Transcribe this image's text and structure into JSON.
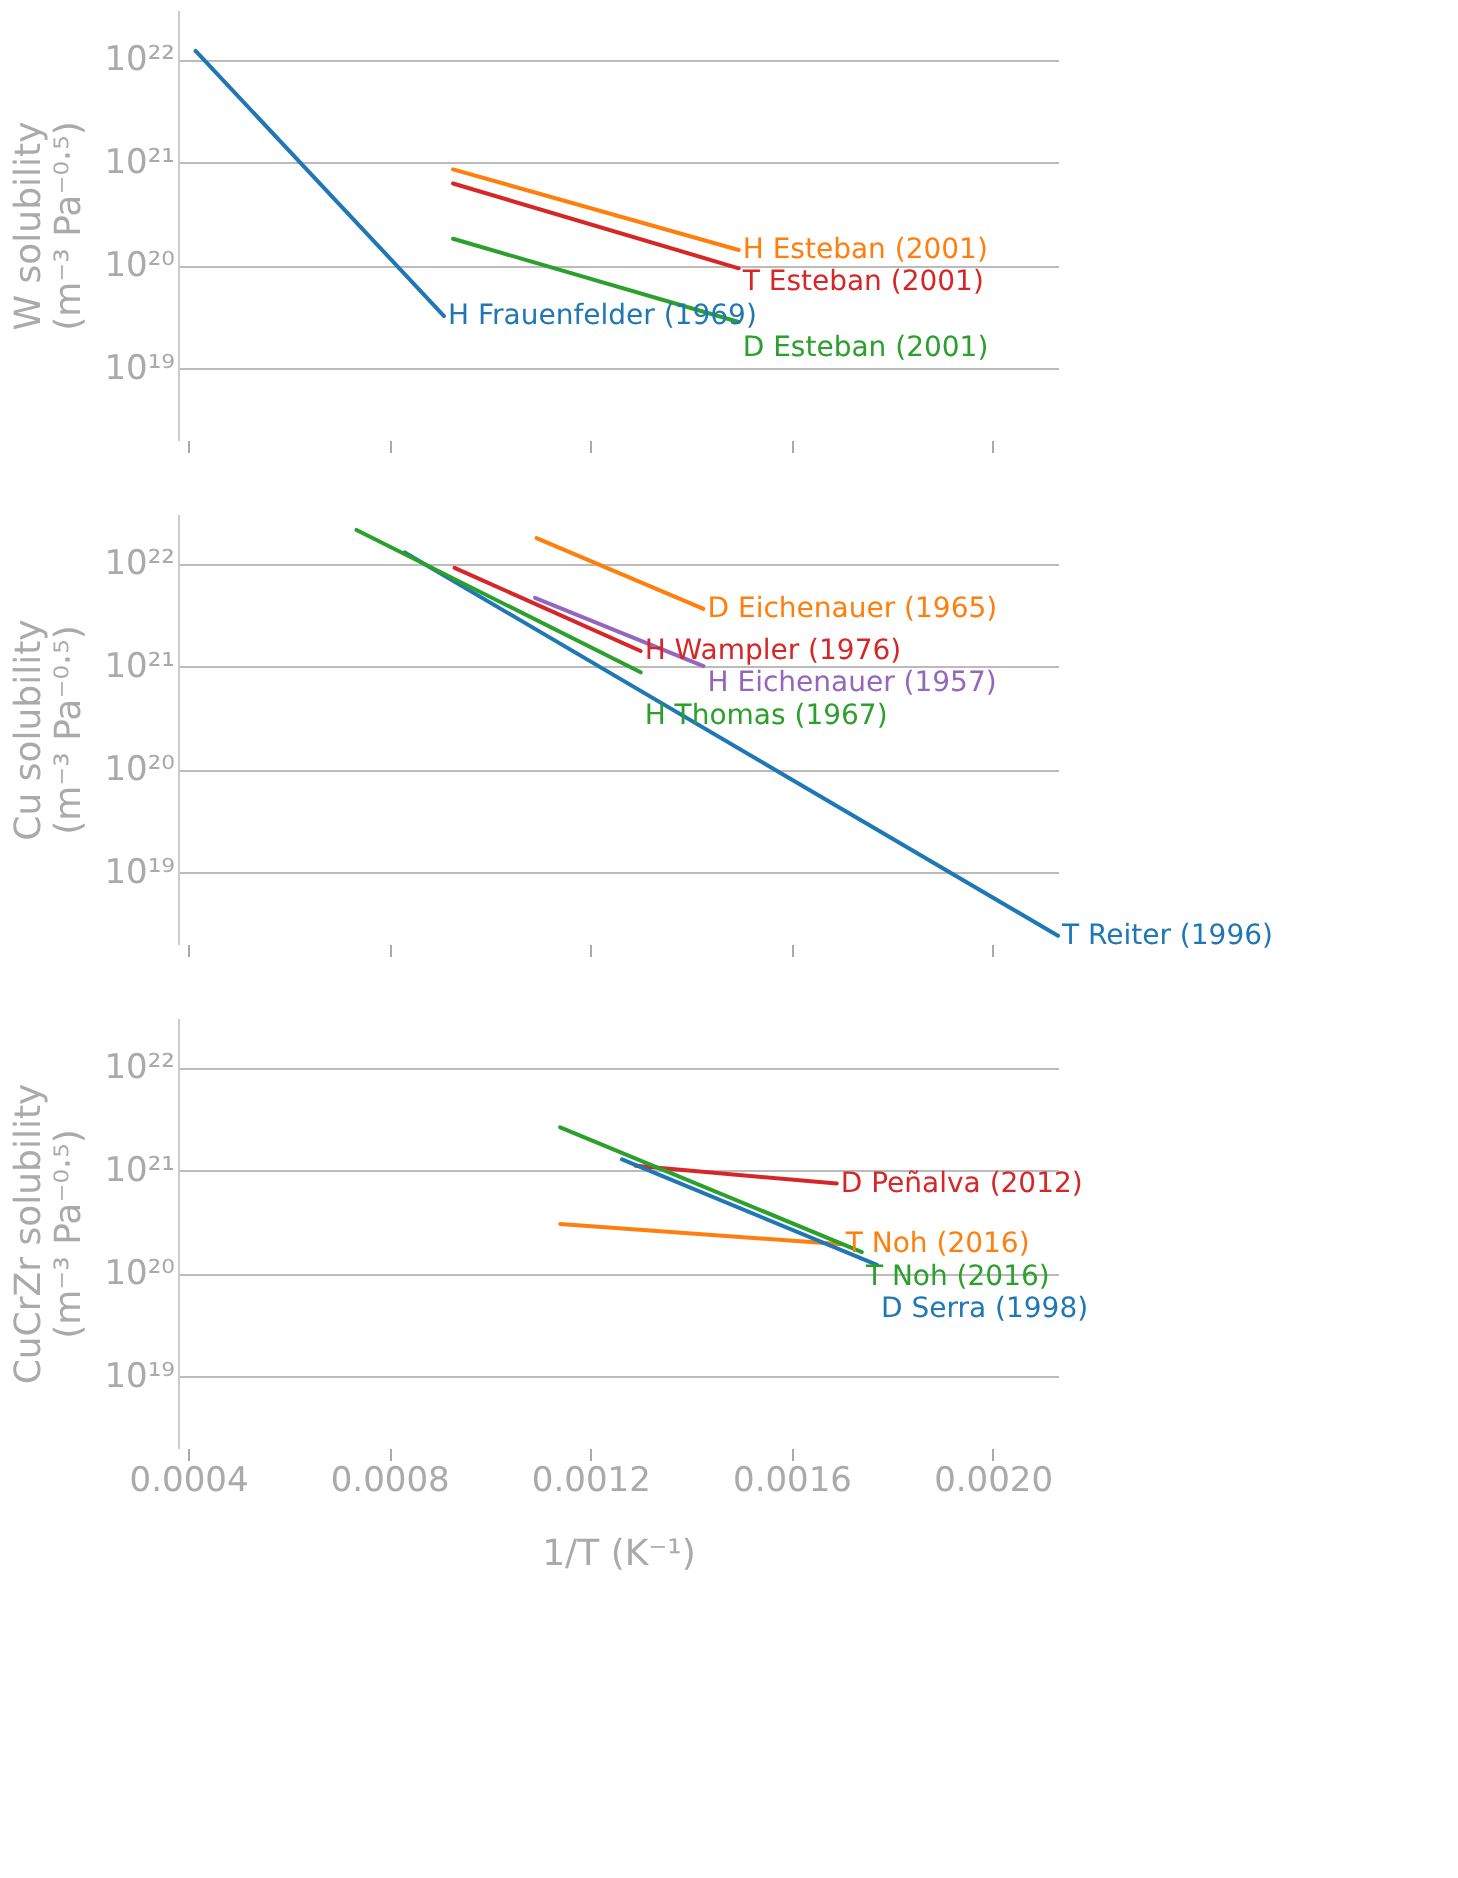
{
  "chart_data": [
    {
      "type": "line",
      "ylabel": "W solubility\n(m⁻³ Pa⁻⁰·⁵)",
      "log": "y",
      "grid": "y",
      "tick_labels": "y",
      "line_style": "solid",
      "xlim": [
        0.00038,
        0.00213
      ],
      "xticks": [
        {
          "value": 0.0004,
          "label": null
        },
        {
          "value": 0.0008,
          "label": null
        },
        {
          "value": 0.0012,
          "label": null
        },
        {
          "value": 0.0016,
          "label": null
        },
        {
          "value": 0.002,
          "label": null
        }
      ],
      "ylim": [
        2e+18,
        3e+22
      ],
      "yticks": [
        {
          "value": 1e+19,
          "label": "10¹⁹"
        },
        {
          "value": 1e+20,
          "label": "10²⁰"
        },
        {
          "value": 1e+21,
          "label": "10²¹"
        },
        {
          "value": 1e+22,
          "label": "10²²"
        }
      ],
      "series": [
        {
          "name": "H Frauenfelder (1969)",
          "color": "#1f77b4",
          "x": [
            0.000415,
            0.000909
          ],
          "values": [
            1.2e+22,
            3.2e+19
          ]
        },
        {
          "name": "H Esteban (2001)",
          "color": "#ff7f0e",
          "x": [
            0.000927,
            0.001495
          ],
          "values": [
            8.5e+20,
            1.4e+20
          ]
        },
        {
          "name": "T Esteban (2001)",
          "color": "#d62728",
          "x": [
            0.000927,
            0.001495
          ],
          "values": [
            6.2e+20,
            9.3e+19
          ]
        },
        {
          "name": "D Esteban (2001)",
          "color": "#2ca02c",
          "x": [
            0.000927,
            0.001495
          ],
          "values": [
            1.8e+20,
            2.8e+19
          ]
        }
      ]
    },
    {
      "type": "line",
      "ylabel": "Cu solubility\n(m⁻³ Pa⁻⁰·⁵)",
      "log": "y",
      "grid": "y",
      "tick_labels": "y",
      "line_style": "solid",
      "xlim": [
        0.00038,
        0.00213
      ],
      "xticks": [
        {
          "value": 0.0004,
          "label": null
        },
        {
          "value": 0.0008,
          "label": null
        },
        {
          "value": 0.0012,
          "label": null
        },
        {
          "value": 0.0016,
          "label": null
        },
        {
          "value": 0.002,
          "label": null
        }
      ],
      "ylim": [
        2e+18,
        3e+22
      ],
      "yticks": [
        {
          "value": 1e+19,
          "label": "10¹⁹"
        },
        {
          "value": 1e+20,
          "label": "10²⁰"
        },
        {
          "value": 1e+21,
          "label": "10²¹"
        },
        {
          "value": 1e+22,
          "label": "10²²"
        }
      ],
      "series": [
        {
          "name": "T Reiter (1996)",
          "color": "#1f77b4",
          "x": [
            0.000831,
            0.00213
          ],
          "values": [
            1.27e+22,
            2.4e+18
          ]
        },
        {
          "name": "D Eichenauer (1965)",
          "color": "#ff7f0e",
          "x": [
            0.001093,
            0.001425
          ],
          "values": [
            1.75e+22,
            3.6e+21
          ]
        },
        {
          "name": "H Wampler (1976)",
          "color": "#d62728",
          "x": [
            0.00093,
            0.0013
          ],
          "values": [
            9e+21,
            1.4e+21
          ]
        },
        {
          "name": "H Thomas (1967)",
          "color": "#2ca02c",
          "x": [
            0.000735,
            0.0013
          ],
          "values": [
            2.1e+22,
            8.7e+20
          ]
        },
        {
          "name": "H Eichenauer (1957)",
          "color": "#9467bd",
          "x": [
            0.00109,
            0.001425
          ],
          "values": [
            4.6e+21,
            1e+21
          ]
        }
      ]
    },
    {
      "type": "line",
      "ylabel": "CuCrZr solubility\n(m⁻³ Pa⁻⁰·⁵)",
      "xlabel": "1/T (K⁻¹)",
      "log": "y",
      "grid": "y",
      "line_style": "solid",
      "xlim": [
        0.00038,
        0.00213
      ],
      "xticks": [
        0.0004,
        0.0008,
        0.0012,
        0.0016,
        {
          "value": 0.002,
          "label": "0.0020"
        }
      ],
      "ylim": [
        2e+18,
        3e+22
      ],
      "yticks": [
        {
          "value": 1e+19,
          "label": "10¹⁹"
        },
        {
          "value": 1e+20,
          "label": "10²⁰"
        },
        {
          "value": 1e+21,
          "label": "10²¹"
        },
        {
          "value": 1e+22,
          "label": "10²²"
        }
      ],
      "series": [
        {
          "name": "D Peñalva (2012)",
          "color": "#d62728",
          "x": [
            0.00129,
            0.00169
          ],
          "values": [
            1.1e+21,
            7.4e+20
          ]
        },
        {
          "name": "T Noh (2016)",
          "color": "#ff7f0e",
          "x": [
            0.00114,
            0.0017
          ],
          "values": [
            3e+20,
            1.9e+20
          ]
        },
        {
          "name": "T Noh (2016)",
          "color": "#2ca02c",
          "x": [
            0.00114,
            0.00174
          ],
          "values": [
            2.6e+21,
            1.6e+20
          ]
        },
        {
          "name": "D Serra (1998)",
          "color": "#1f77b4",
          "x": [
            0.001263,
            0.00177
          ],
          "values": [
            1.27e+21,
            1.2e+20
          ]
        }
      ]
    }
  ]
}
